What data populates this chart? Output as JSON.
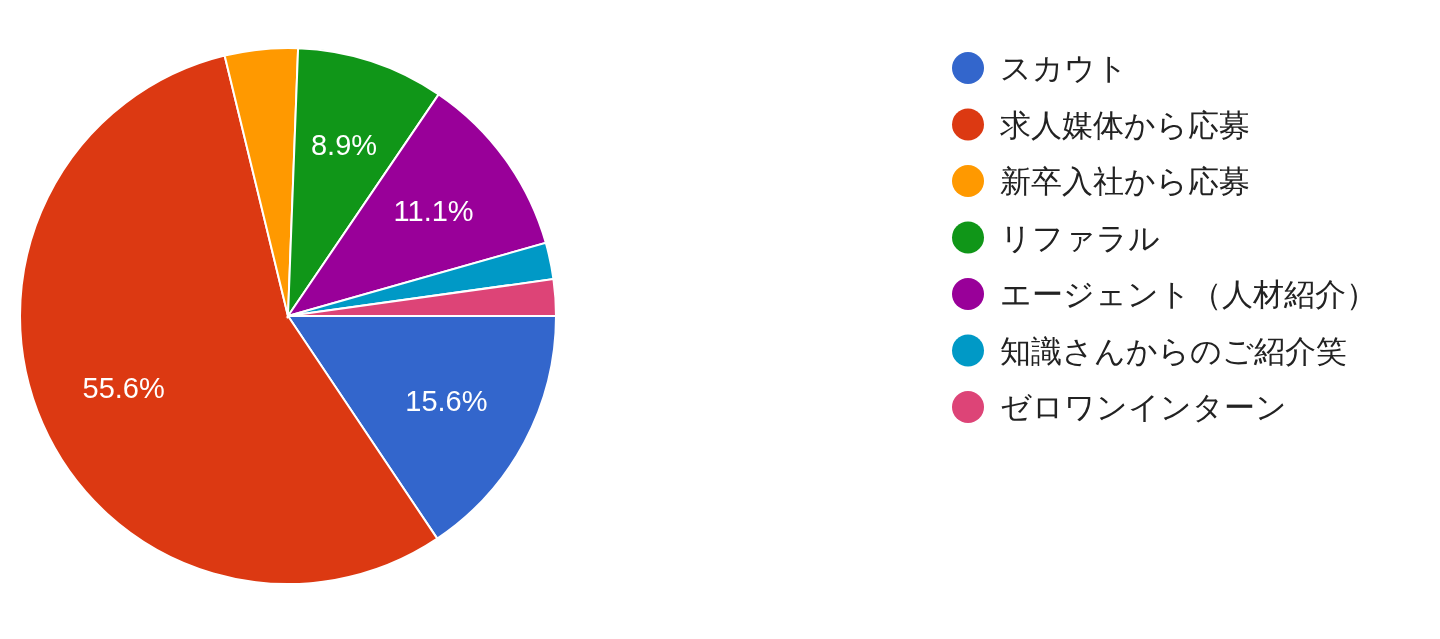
{
  "chart_data": {
    "type": "pie",
    "categories": [
      "スカウト",
      "求人媒体から応募",
      "新卒入社から応募",
      "リファラル",
      "エージェント（人材紹介）",
      "知識さんからのご紹介笑",
      "ゼロワンインターン"
    ],
    "values": [
      15.6,
      55.6,
      4.4,
      8.9,
      11.1,
      2.2,
      2.2
    ],
    "colors": [
      "#3366cc",
      "#dc3912",
      "#ff9900",
      "#109618",
      "#990099",
      "#0099c6",
      "#dd4477"
    ],
    "value_labels": [
      "15.6%",
      "55.6%",
      null,
      "8.9%",
      "11.1%",
      null,
      null
    ],
    "legend": "right"
  }
}
